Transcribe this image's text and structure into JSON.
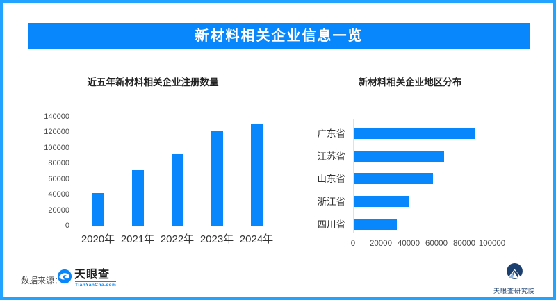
{
  "page": {
    "title": "新材料相关企业信息一览"
  },
  "colors": {
    "primary_blue": "#0787FB",
    "border_blue": "#22A3FF",
    "axis_gray": "#e1e1e1",
    "text_dark": "#333333",
    "navy": "#1B3F6E"
  },
  "footer": {
    "source_label": "数据来源：",
    "source_logo_text": "天眼查",
    "source_logo_sub": "TianYanCha.com",
    "institute_label": "天眼查研究院"
  },
  "chart_data": [
    {
      "type": "bar",
      "orientation": "vertical",
      "title": "近五年新材料相关企业注册数量",
      "categories": [
        "2020年",
        "2021年",
        "2022年",
        "2023年",
        "2024年"
      ],
      "values": [
        42000,
        71000,
        92000,
        121000,
        130000
      ],
      "xlabel": "",
      "ylabel": "",
      "ylim": [
        0,
        140000
      ],
      "ytick_step": 20000,
      "grid": false,
      "legend": false,
      "bar_color": "#0787FB"
    },
    {
      "type": "bar",
      "orientation": "horizontal",
      "title": "新材料相关企业地区分布",
      "categories": [
        "广东省",
        "江苏省",
        "山东省",
        "浙江省",
        "四川省"
      ],
      "values": [
        87000,
        65000,
        57000,
        40000,
        31000
      ],
      "xlabel": "",
      "ylabel": "",
      "xlim": [
        0,
        113000
      ],
      "xtick_step": 20000,
      "xtick_max": 100000,
      "grid": false,
      "legend": false,
      "bar_color": "#0787FB"
    }
  ]
}
